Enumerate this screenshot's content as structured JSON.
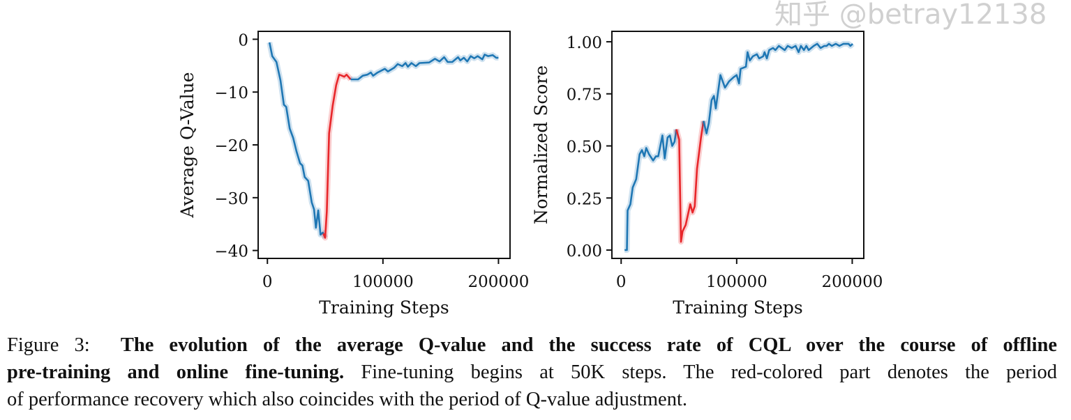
{
  "chart_data": [
    {
      "type": "line",
      "xlabel": "Training Steps",
      "ylabel": "Average Q-Value",
      "xlim": [
        -8000,
        210000
      ],
      "ylim": [
        -41.5,
        1.5
      ],
      "xticks": [
        0,
        100000,
        200000
      ],
      "xtick_labels": [
        "0",
        "100000",
        "200000"
      ],
      "yticks": [
        0,
        -10,
        -20,
        -30,
        -40
      ],
      "ytick_labels": [
        "0",
        "−10",
        "−20",
        "−30",
        "−40"
      ],
      "grid": false,
      "shaded_band": true,
      "colors": {
        "pretrain": "#1f77b4",
        "recovery": "#e8262a"
      },
      "series": [
        {
          "color": "#1f77b4",
          "x": [
            1800,
            4200,
            7800,
            11300,
            14300,
            16300,
            19300,
            22300,
            25300,
            28300,
            30300,
            32300,
            35300,
            38400,
            40400,
            42000,
            44000,
            46000,
            48000,
            50000
          ],
          "y": [
            -0.6,
            -3.2,
            -4.3,
            -7.8,
            -12.4,
            -12.8,
            -16.9,
            -18.7,
            -21.3,
            -23.5,
            -23.9,
            -26.1,
            -26.8,
            -30.9,
            -32.2,
            -35.7,
            -32.4,
            -37.0,
            -36.6,
            -37.6
          ]
        },
        {
          "color": "#e8262a",
          "x": [
            48500,
            50000,
            51400,
            53400,
            56500,
            59500,
            62100,
            64500,
            66500,
            68500,
            72100
          ],
          "y": [
            -36.8,
            -37.6,
            -32.6,
            -17.8,
            -12.6,
            -8.7,
            -6.7,
            -6.9,
            -7.1,
            -6.7,
            -7.6
          ]
        },
        {
          "color": "#1f77b4",
          "x": [
            72100,
            78500,
            82500,
            86500,
            89500,
            91500,
            95400,
            101600,
            104300,
            109700,
            112800,
            116700,
            119600,
            121600,
            124700,
            128500,
            131600,
            140000,
            145000,
            149000,
            153000,
            156000,
            160000,
            165000,
            167000,
            170000,
            173000,
            176000,
            179000,
            182000,
            186000,
            188000,
            191000,
            195000,
            198000,
            200000
          ],
          "y": [
            -7.6,
            -7.6,
            -6.9,
            -6.7,
            -6.3,
            -6.9,
            -6.3,
            -5.6,
            -6.1,
            -5.4,
            -4.7,
            -5.1,
            -4.5,
            -5.2,
            -4.5,
            -5.1,
            -4.5,
            -4.4,
            -3.7,
            -4.2,
            -3.4,
            -4.3,
            -4.3,
            -3.4,
            -4.0,
            -3.5,
            -4.2,
            -3.2,
            -3.6,
            -3.2,
            -3.8,
            -2.9,
            -3.2,
            -3.0,
            -3.5,
            -3.5
          ]
        }
      ]
    },
    {
      "type": "line",
      "xlabel": "Training Steps",
      "ylabel": "Normalized Score",
      "xlim": [
        -8000,
        210000
      ],
      "ylim": [
        -0.04,
        1.05
      ],
      "xticks": [
        0,
        100000,
        200000
      ],
      "xtick_labels": [
        "0",
        "100000",
        "200000"
      ],
      "yticks": [
        0,
        0.25,
        0.5,
        0.75,
        1.0
      ],
      "ytick_labels": [
        "0.00",
        "0.25",
        "0.50",
        "0.75",
        "1.00"
      ],
      "grid": false,
      "shaded_band": true,
      "colors": {
        "pretrain": "#1f77b4",
        "recovery": "#e8262a"
      },
      "series": [
        {
          "color": "#1f77b4",
          "x": [
            3000,
            5000,
            5600,
            8000,
            10000,
            13000,
            16000,
            18000,
            20000,
            21700,
            24100,
            27700,
            30100,
            32100,
            35700,
            37700,
            40200,
            42200,
            44200,
            46200,
            47800
          ],
          "y": [
            0.0,
            0.0,
            0.19,
            0.22,
            0.3,
            0.34,
            0.46,
            0.48,
            0.45,
            0.49,
            0.46,
            0.43,
            0.45,
            0.45,
            0.55,
            0.44,
            0.54,
            0.55,
            0.5,
            0.52,
            0.58
          ]
        },
        {
          "color": "#e8262a",
          "x": [
            47800,
            50200,
            51800,
            53200,
            55800,
            59800,
            61800,
            63700,
            65700,
            69100,
            71300
          ],
          "y": [
            0.58,
            0.53,
            0.04,
            0.09,
            0.12,
            0.22,
            0.18,
            0.21,
            0.39,
            0.54,
            0.62
          ]
        },
        {
          "color": "#1f77b4",
          "x": [
            71300,
            73900,
            75900,
            78300,
            80300,
            81900,
            85900,
            89900,
            93400,
            97400,
            100000,
            102000,
            103400,
            108000,
            109400,
            111400,
            114000,
            117500,
            119500,
            122900,
            124100,
            126100,
            128100,
            131500,
            133500,
            136500,
            141600,
            144200,
            147600,
            151000,
            153600,
            155600,
            158200,
            160300,
            162300,
            166700,
            169700,
            172700,
            175800,
            177800,
            179800,
            182400,
            185800,
            188900,
            192400,
            196800,
            198400,
            200400
          ],
          "y": [
            0.62,
            0.56,
            0.61,
            0.72,
            0.74,
            0.68,
            0.84,
            0.78,
            0.81,
            0.83,
            0.84,
            0.8,
            0.87,
            0.88,
            0.95,
            0.91,
            0.93,
            0.94,
            0.92,
            0.93,
            0.95,
            0.92,
            0.96,
            0.97,
            0.96,
            0.98,
            0.96,
            0.98,
            0.97,
            0.98,
            0.95,
            0.98,
            0.96,
            0.98,
            0.96,
            0.98,
            0.99,
            0.97,
            0.98,
            0.98,
            0.99,
            0.98,
            0.99,
            0.98,
            0.99,
            0.99,
            0.98,
            0.99
          ]
        }
      ]
    }
  ],
  "caption": {
    "line1_label": "Figure 3:",
    "line1_bold": "The evolution of the average Q-value and the success rate of CQL over the course of offline",
    "line2_bold": "pre-training and online fine-tuning.",
    "line2_text": "Fine-tuning begins at 50K steps. The red-colored part denotes the period",
    "line3_text": "of performance recovery which also coincides with the period of Q-value adjustment."
  },
  "watermark": "知乎 @betray12138"
}
